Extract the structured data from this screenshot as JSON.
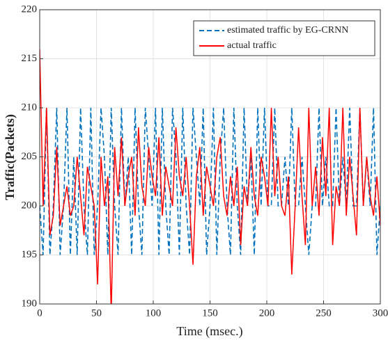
{
  "chart_data": {
    "type": "line",
    "xlabel": "Time (msec.)",
    "ylabel": "Traffic(Packets)",
    "x": [
      0,
      3,
      6,
      9,
      12,
      15,
      18,
      21,
      24,
      27,
      30,
      33,
      36,
      39,
      42,
      45,
      48,
      51,
      54,
      57,
      60,
      63,
      66,
      69,
      72,
      75,
      78,
      81,
      84,
      87,
      90,
      93,
      96,
      99,
      102,
      105,
      108,
      111,
      114,
      117,
      120,
      123,
      126,
      129,
      132,
      135,
      138,
      141,
      144,
      147,
      150,
      153,
      156,
      159,
      162,
      165,
      168,
      171,
      174,
      177,
      180,
      183,
      186,
      189,
      192,
      195,
      198,
      201,
      204,
      207,
      210,
      213,
      216,
      219,
      222,
      225,
      228,
      231,
      234,
      237,
      240,
      243,
      246,
      249,
      252,
      255,
      258,
      261,
      264,
      267,
      270,
      273,
      276,
      279,
      282,
      285,
      288,
      291,
      294,
      297,
      300
    ],
    "series": [
      {
        "name": "estimated traffic by EG-CRNN",
        "color": "#0072bd",
        "dash": true,
        "values": [
          200,
          195,
          210,
          195,
          200,
          210,
          195,
          200,
          210,
          195,
          205,
          195,
          210,
          200,
          195,
          210,
          195,
          200,
          210,
          205,
          195,
          210,
          200,
          195,
          210,
          200,
          205,
          195,
          210,
          200,
          195,
          210,
          205,
          200,
          210,
          195,
          210,
          200,
          195,
          210,
          205,
          195,
          210,
          200,
          195,
          210,
          205,
          200,
          210,
          195,
          200,
          210,
          195,
          205,
          210,
          200,
          195,
          210,
          200,
          195,
          210,
          200,
          205,
          195,
          210,
          200,
          210,
          200,
          200,
          210,
          200,
          200,
          205,
          200,
          210,
          200,
          200,
          205,
          200,
          195,
          200,
          200,
          210,
          200,
          205,
          200,
          200,
          210,
          200,
          205,
          200,
          210,
          200,
          200,
          210,
          200,
          205,
          200,
          210,
          195,
          200
        ]
      },
      {
        "name": "actual traffic",
        "color": "#ff0000",
        "dash": false,
        "values": [
          216,
          200,
          210,
          197,
          199,
          206,
          198,
          200,
          202,
          199,
          200,
          205,
          201,
          197,
          204,
          202,
          200,
          192,
          205,
          200,
          203,
          189,
          206,
          201,
          207,
          200,
          203,
          205,
          199,
          208,
          202,
          200,
          206,
          203,
          201,
          207,
          199,
          204,
          202,
          200,
          208,
          203,
          201,
          205,
          200,
          194,
          203,
          206,
          199,
          204,
          202,
          200,
          205,
          207,
          201,
          199,
          203,
          200,
          204,
          196,
          202,
          200,
          206,
          201,
          199,
          205,
          203,
          200,
          210,
          201,
          205,
          200,
          199,
          203,
          193,
          200,
          208,
          201,
          196,
          210,
          200,
          204,
          199,
          207,
          201,
          210,
          196,
          202,
          200,
          210,
          199,
          205,
          201,
          197,
          210,
          200,
          205,
          201,
          199,
          203,
          198
        ]
      }
    ],
    "xlim": [
      0,
      300
    ],
    "xticks": [
      0,
      50,
      100,
      150,
      200,
      250,
      300
    ],
    "ylim": [
      190,
      220
    ],
    "yticks": [
      190,
      195,
      200,
      205,
      210,
      215,
      220
    ],
    "grid": true,
    "legend": "upper right"
  }
}
